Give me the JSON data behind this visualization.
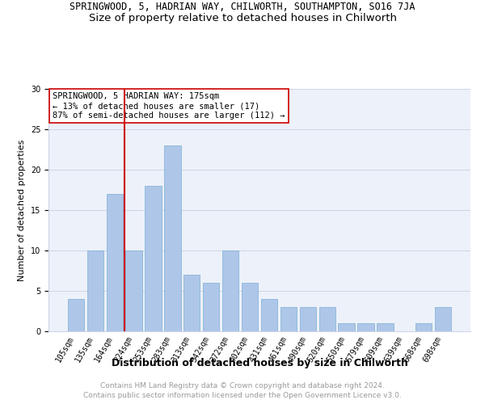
{
  "title": "SPRINGWOOD, 5, HADRIAN WAY, CHILWORTH, SOUTHAMPTON, SO16 7JA",
  "subtitle": "Size of property relative to detached houses in Chilworth",
  "xlabel": "Distribution of detached houses by size in Chilworth",
  "ylabel": "Number of detached properties",
  "categories": [
    "105sqm",
    "135sqm",
    "164sqm",
    "224sqm",
    "253sqm",
    "283sqm",
    "313sqm",
    "342sqm",
    "372sqm",
    "402sqm",
    "431sqm",
    "461sqm",
    "490sqm",
    "520sqm",
    "550sqm",
    "579sqm",
    "609sqm",
    "639sqm",
    "668sqm",
    "698sqm"
  ],
  "values": [
    4,
    10,
    17,
    10,
    18,
    23,
    7,
    6,
    10,
    6,
    4,
    3,
    3,
    3,
    1,
    1,
    1,
    0,
    1,
    3
  ],
  "bar_color": "#aec6e8",
  "bar_edge_color": "#7aafd4",
  "vline_x": 2.5,
  "vline_color": "#cc0000",
  "ylim": [
    0,
    30
  ],
  "yticks": [
    0,
    5,
    10,
    15,
    20,
    25,
    30
  ],
  "annotation_title": "SPRINGWOOD, 5 HADRIAN WAY: 175sqm",
  "annotation_line2": "← 13% of detached houses are smaller (17)",
  "annotation_line3": "87% of semi-detached houses are larger (112) →",
  "footer_line1": "Contains HM Land Registry data © Crown copyright and database right 2024.",
  "footer_line2": "Contains public sector information licensed under the Open Government Licence v3.0.",
  "title_fontsize": 8.5,
  "subtitle_fontsize": 9.5,
  "xlabel_fontsize": 9,
  "ylabel_fontsize": 8,
  "tick_fontsize": 7,
  "annotation_fontsize": 7.5,
  "footer_fontsize": 6.5,
  "grid_color": "#cdd5e8",
  "background_color": "#edf1f9"
}
